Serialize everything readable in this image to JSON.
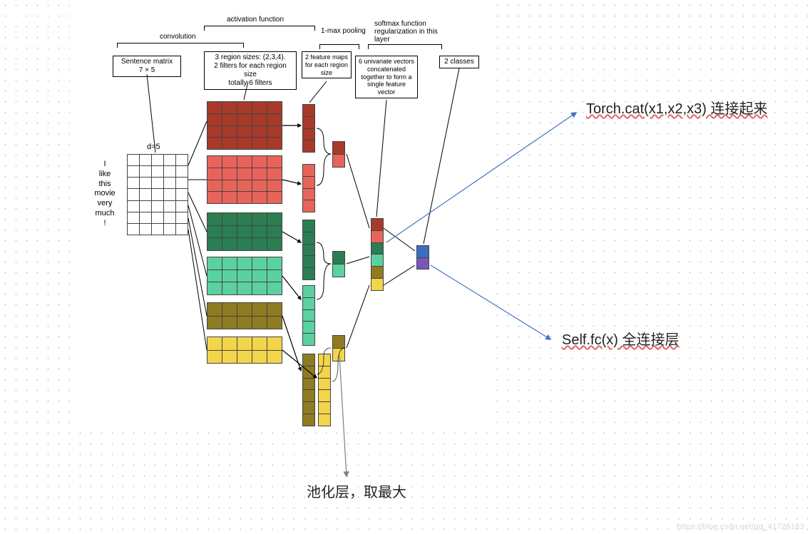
{
  "colors": {
    "darkRed": "#a83a2a",
    "red": "#e8645a",
    "darkGreen": "#2a7e52",
    "green": "#5ad1a0",
    "olive": "#8f7b21",
    "yellow": "#f3d54b",
    "blue": "#3a6fc2",
    "purple": "#7a55b8",
    "matrixBg": "#ffffff",
    "border": "#444444",
    "arrowBlue": "#4472c4",
    "arrowGray": "#7f7f7f"
  },
  "header": {
    "conv_label": "convolution",
    "act_label": "activation function",
    "pool_label": "1-max pooling",
    "softmax_label": "softmax function regularization in this layer",
    "box_sentence_matrix": "Sentence matrix\n7 × 5",
    "box_filters": "3 region sizes: (2,3,4).\n2 filters for each region size\ntotally 6 filters",
    "box_feature_maps": "2 feature maps for each region size",
    "box_concat": "6 univariate vectors concatenated together to form a single feature vector",
    "box_classes": "2 classes"
  },
  "sentence": {
    "words": [
      "I",
      "like",
      "this",
      "movie",
      "very",
      "much",
      "!"
    ],
    "d_label": "d=5",
    "rows": 7,
    "cols": 5
  },
  "conv_maps": [
    {
      "rows": 4,
      "cols": 5,
      "color": "darkRed"
    },
    {
      "rows": 4,
      "cols": 5,
      "color": "red"
    },
    {
      "rows": 3,
      "cols": 5,
      "color": "darkGreen"
    },
    {
      "rows": 3,
      "cols": 5,
      "color": "green"
    },
    {
      "rows": 2,
      "cols": 5,
      "color": "olive"
    },
    {
      "rows": 2,
      "cols": 5,
      "color": "yellow"
    }
  ],
  "feature_cols": [
    {
      "cells": 4,
      "color": "darkRed"
    },
    {
      "cells": 4,
      "color": "red"
    },
    {
      "cells": 5,
      "color": "darkGreen"
    },
    {
      "cells": 5,
      "color": "green"
    },
    {
      "cells": 6,
      "color": "olive"
    },
    {
      "cells": 6,
      "color": "yellow"
    }
  ],
  "pooled_pairs": [
    {
      "colors": [
        "darkRed",
        "red"
      ]
    },
    {
      "colors": [
        "darkGreen",
        "green"
      ]
    },
    {
      "colors": [
        "olive",
        "yellow"
      ]
    }
  ],
  "concat_vector": [
    "darkRed",
    "red",
    "darkGreen",
    "green",
    "olive",
    "yellow"
  ],
  "output_vector": [
    "blue",
    "purple"
  ],
  "annotations": {
    "cat": "Torch.cat(x1,x2,x3) 连接起来",
    "fc": "Self.fc(x) 全连接层",
    "pool": "池化层，取最大"
  },
  "watermark": "https://blog.csdn.net/qq_41726183"
}
